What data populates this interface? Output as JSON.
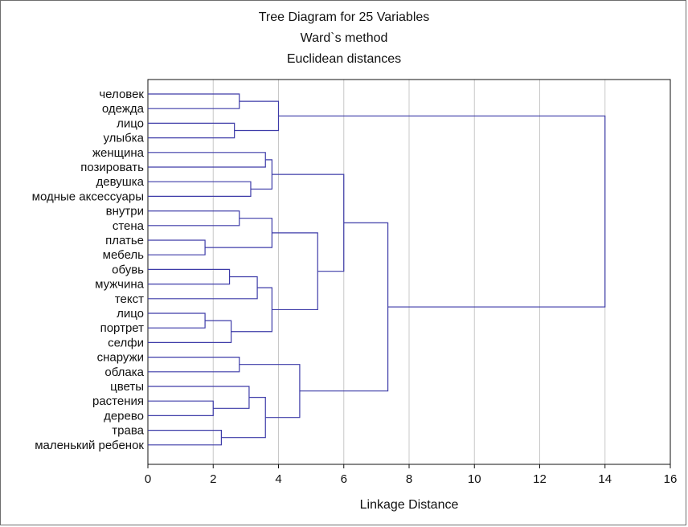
{
  "chart_data": {
    "type": "dendrogram",
    "title_lines": [
      "Tree Diagram for 25  Variables",
      "Ward`s method",
      "Euclidean distances"
    ],
    "xlabel": "Linkage Distance",
    "xlim": [
      0,
      16
    ],
    "xticks": [
      0,
      2,
      4,
      6,
      8,
      10,
      12,
      14,
      16
    ],
    "grid": true,
    "leaves": [
      "человек",
      "одежда",
      "лицо",
      "улыбка",
      "женщина",
      "позировать",
      "девушка",
      "модные аксессуары",
      "внутри",
      "стена",
      "платье",
      "мебель",
      "обувь",
      "мужчина",
      "текст",
      "лицо",
      "портрет",
      "селфи",
      "снаружи",
      "облака",
      "цветы",
      "растения",
      "дерево",
      "трава",
      "маленький ребенок"
    ],
    "merges": [
      {
        "a": 0,
        "b": 1,
        "height": 2.8
      },
      {
        "a": 2,
        "b": 3,
        "height": 2.65
      },
      {
        "a": "m0",
        "b": "m1",
        "height": 4.0
      },
      {
        "a": 4,
        "b": 5,
        "height": 3.6
      },
      {
        "a": 6,
        "b": 7,
        "height": 3.15
      },
      {
        "a": "m3",
        "b": "m4",
        "height": 3.8
      },
      {
        "a": 10,
        "b": 11,
        "height": 1.75
      },
      {
        "a": 8,
        "b": 9,
        "height": 2.8
      },
      {
        "a": "m7",
        "b": "m6",
        "height": 3.8
      },
      {
        "a": 12,
        "b": 13,
        "height": 2.5
      },
      {
        "a": "m9",
        "b": 14,
        "height": 3.35
      },
      {
        "a": 15,
        "b": 16,
        "height": 1.75
      },
      {
        "a": "m11",
        "b": 17,
        "height": 2.55
      },
      {
        "a": "m10",
        "b": "m12",
        "height": 3.8
      },
      {
        "a": "m8",
        "b": "m13",
        "height": 5.2
      },
      {
        "a": "m5",
        "b": "m14",
        "height": 6.0
      },
      {
        "a": 18,
        "b": 19,
        "height": 2.8
      },
      {
        "a": 21,
        "b": 22,
        "height": 2.0
      },
      {
        "a": 20,
        "b": "m17",
        "height": 3.1
      },
      {
        "a": 23,
        "b": 24,
        "height": 2.25
      },
      {
        "a": "m18",
        "b": "m19",
        "height": 3.6
      },
      {
        "a": "m16",
        "b": "m20",
        "height": 4.65
      },
      {
        "a": "m15",
        "b": "m21",
        "height": 7.35
      },
      {
        "a": "m2",
        "b": "m22",
        "height": 14.0
      }
    ],
    "colors": {
      "tree": "#3d3ba8",
      "grid": "#c8c8c8",
      "axis": "#111111",
      "frame": "#6e6e6e"
    }
  }
}
